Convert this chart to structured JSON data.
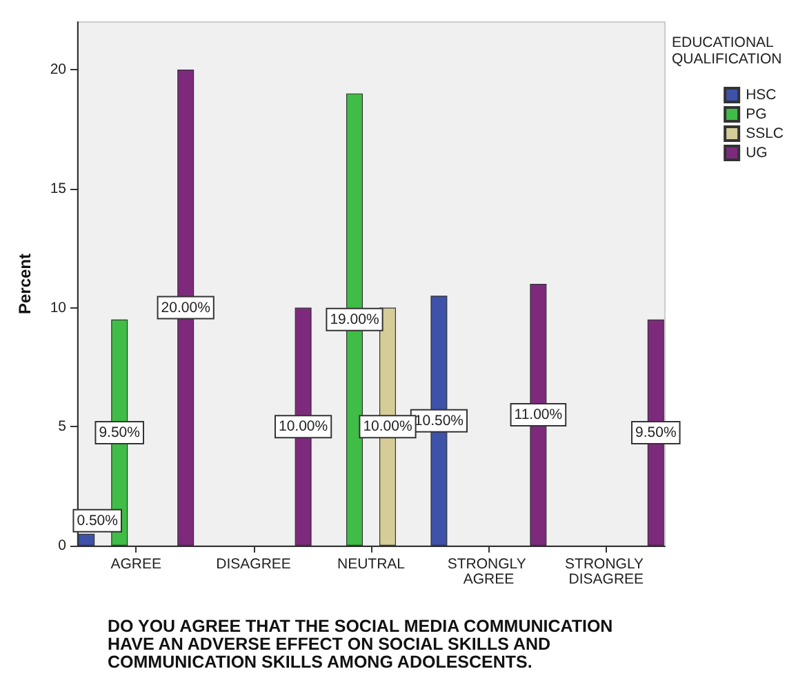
{
  "chart_data": {
    "type": "bar",
    "ylabel": "Percent",
    "xlabel": "DO YOU AGREE THAT THE SOCIAL MEDIA COMMUNICATION HAVE AN ADVERSE EFFECT ON SOCIAL SKILLS AND COMMUNICATION SKILLS AMONG ADOLESCENTS.",
    "legend_title": "EDUCATIONAL QUALIFICATION",
    "categories": [
      "AGREE",
      "DISAGREE",
      "NEUTRAL",
      "STRONGLY AGREE",
      "STRONGLY DISAGREE"
    ],
    "series": [
      {
        "name": "HSC",
        "color": "#3d52a8",
        "values": [
          0.5,
          null,
          null,
          10.5,
          null
        ],
        "value_labels": [
          "0.50%",
          null,
          null,
          "10.50%",
          null
        ]
      },
      {
        "name": "PG",
        "color": "#3fbd46",
        "values": [
          9.5,
          null,
          19,
          null,
          null
        ],
        "value_labels": [
          "9.50%",
          null,
          "19.00%",
          null,
          null
        ]
      },
      {
        "name": "SSLC",
        "color": "#d5cc98",
        "values": [
          null,
          null,
          10,
          null,
          null
        ],
        "value_labels": [
          null,
          null,
          "10.00%",
          null,
          null
        ]
      },
      {
        "name": "UG",
        "color": "#7d2a7d",
        "values": [
          20,
          10,
          null,
          11,
          9.5
        ],
        "value_labels": [
          "20.00%",
          "10.00%",
          null,
          "11.00%",
          "9.50%"
        ]
      }
    ],
    "ylim": [
      0,
      22
    ],
    "yticks": [
      0,
      5,
      10,
      15,
      20
    ],
    "grid": false,
    "legend": "top right"
  }
}
